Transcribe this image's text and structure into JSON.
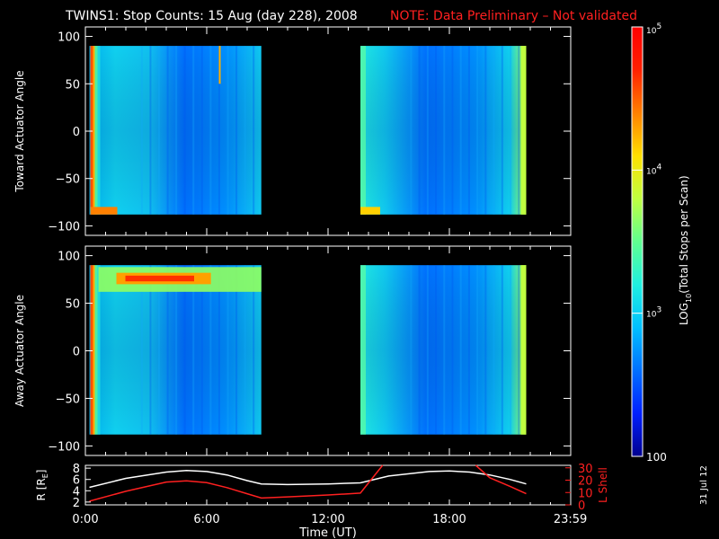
{
  "header": {
    "title": "TWINS1: Stop Counts: 15 Aug (day 228), 2008",
    "note": "NOTE: Data Preliminary – Not validated"
  },
  "footer": {
    "date_stamp": "31 Jul 12"
  },
  "colorbar": {
    "label": "LOG10(Total Stops per Scan)",
    "label_main": "LOG",
    "label_sub": "10",
    "label_rest": "(Total Stops per Scan)",
    "ticks": [
      {
        "base": "10",
        "exp": "5",
        "value": 100000
      },
      {
        "base": "10",
        "exp": "4",
        "value": 10000
      },
      {
        "base": "10",
        "exp": "3",
        "value": 1000
      },
      {
        "base": "100",
        "exp": "",
        "value": 100
      }
    ],
    "range": [
      100,
      100000
    ],
    "colors": [
      "#00008f",
      "#0020ff",
      "#0070ff",
      "#00c0ff",
      "#20f0e0",
      "#60ff90",
      "#c0ff40",
      "#ffe000",
      "#ff8000",
      "#ff2000",
      "#ff0000"
    ]
  },
  "chart_data": [
    {
      "type": "heatmap",
      "ylabel": "Toward Actuator Angle",
      "yticks": [
        "100",
        "50",
        "0",
        "−50",
        "−100"
      ],
      "ytick_values": [
        100,
        50,
        0,
        -50,
        -100
      ],
      "ylim": [
        -110,
        110
      ],
      "xlim": [
        0,
        24
      ],
      "data_blocks_hours": [
        [
          0.2,
          8.7
        ],
        [
          13.6,
          21.8
        ]
      ],
      "angle_range": [
        -88,
        90
      ]
    },
    {
      "type": "heatmap",
      "ylabel": "Away Actuator Angle",
      "yticks": [
        "100",
        "50",
        "0",
        "−50",
        "−100"
      ],
      "ytick_values": [
        100,
        50,
        0,
        -50,
        -100
      ],
      "ylim": [
        -110,
        110
      ],
      "xlim": [
        0,
        24
      ],
      "data_blocks_hours": [
        [
          0.2,
          8.7
        ],
        [
          13.6,
          21.8
        ]
      ],
      "angle_range": [
        -88,
        90
      ]
    },
    {
      "type": "line",
      "ylabel_left": "R [RE]",
      "ylabel_left_main": "R [R",
      "ylabel_left_sub": "E",
      "ylabel_left_end": "]",
      "ylabel_right": "L Shell",
      "yticks_left": [
        "8",
        "6",
        "4",
        "2"
      ],
      "ytick_left_values": [
        8,
        6,
        4,
        2
      ],
      "yticks_right": [
        "30",
        "20",
        "10",
        "0"
      ],
      "ytick_right_values": [
        30,
        20,
        10,
        0
      ],
      "ylim_left": [
        1.5,
        8.5
      ],
      "ylim_right": [
        0,
        32
      ],
      "xlabel": "Time (UT)",
      "xticks": [
        "0:00",
        "6:00",
        "12:00",
        "18:00",
        "23:59"
      ],
      "xtick_values": [
        0,
        6,
        12,
        18,
        23.98
      ],
      "series": [
        {
          "color": "#ffffff",
          "axis": "left",
          "x": [
            0.2,
            2,
            4,
            5,
            6,
            7,
            8,
            8.7,
            10,
            12,
            13.6,
            15,
            17,
            18,
            19,
            20,
            21,
            21.8
          ],
          "y": [
            4.6,
            6.2,
            7.3,
            7.6,
            7.4,
            6.8,
            5.8,
            5.2,
            5.1,
            5.2,
            5.4,
            6.6,
            7.4,
            7.5,
            7.3,
            6.8,
            6.0,
            5.2
          ]
        },
        {
          "color": "#ff2020",
          "axis": "right",
          "x": [
            0.2,
            2,
            4,
            5,
            6,
            7,
            8,
            8.7,
            10,
            12,
            13.6,
            14.7
          ],
          "y": [
            3,
            11,
            18.5,
            19.5,
            18,
            14,
            9,
            5.5,
            6.5,
            8,
            9.5,
            32
          ]
        },
        {
          "color": "#ff2020",
          "axis": "right",
          "x": [
            19.3,
            20,
            21,
            21.8
          ],
          "y": [
            32,
            22,
            15,
            9
          ]
        }
      ]
    }
  ]
}
